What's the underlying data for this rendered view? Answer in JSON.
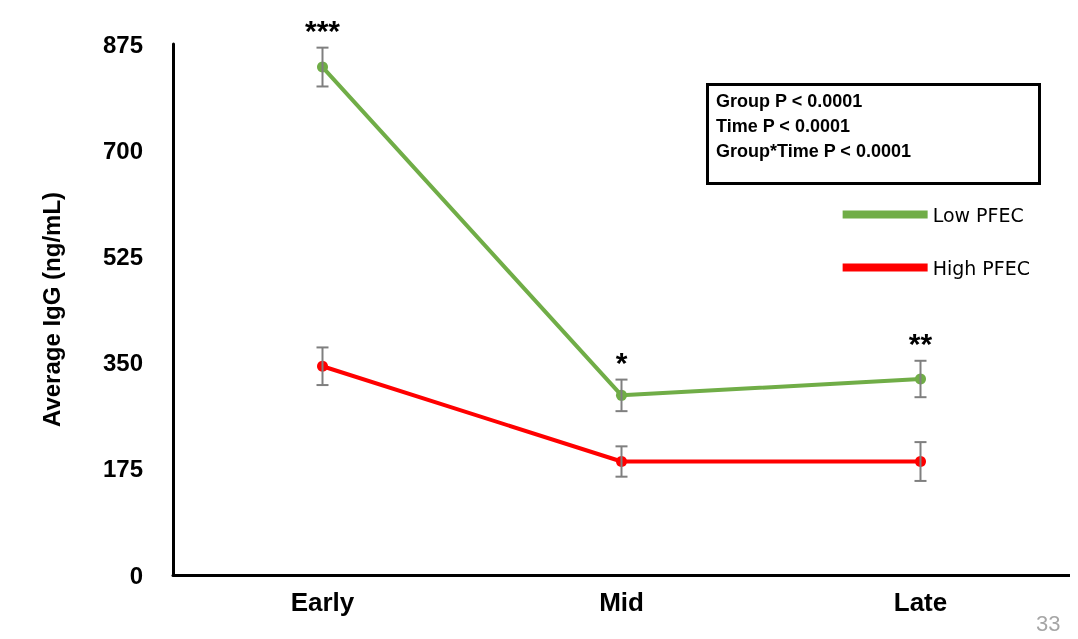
{
  "chart_data": {
    "type": "line",
    "ylabel": "Average IgG (ng/mL)",
    "categories": [
      "Early",
      "Mid",
      "Late"
    ],
    "series": [
      {
        "name": "Low PFEC",
        "color": "#70ad47",
        "values": [
          837,
          296,
          323
        ],
        "errors": [
          32,
          26,
          30
        ]
      },
      {
        "name": "High PFEC",
        "color": "#ff0000",
        "values": [
          344,
          187,
          187
        ],
        "errors": [
          31,
          25,
          32
        ]
      }
    ],
    "ylim": [
      0,
      875
    ],
    "yticks": [
      0,
      175,
      350,
      525,
      700,
      875
    ],
    "grid": false,
    "legend": "top right",
    "marker": "circle",
    "line_style": "solid",
    "annotations": [
      {
        "text": "***",
        "x": "Early",
        "y": 869
      },
      {
        "text": "*",
        "x": "Mid",
        "y": 322
      },
      {
        "text": "**",
        "x": "Late",
        "y": 353
      },
      "Group P < 0.0001",
      "Time P < 0.0001",
      "Group*Time P < 0.0001",
      "33"
    ]
  }
}
